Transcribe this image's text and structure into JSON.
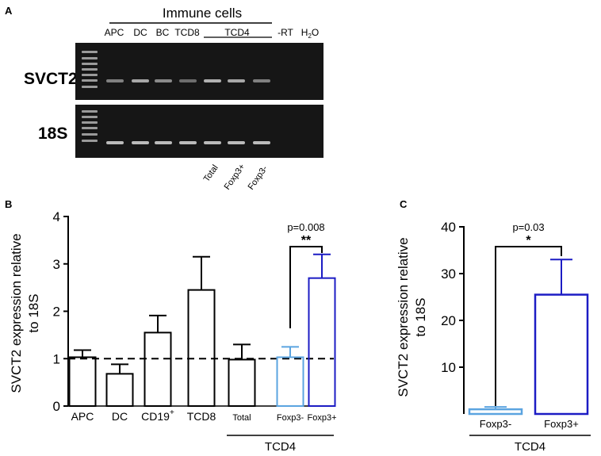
{
  "panel_a": {
    "label": "A",
    "header": "Immune cells",
    "lane_labels": [
      "APC",
      "DC",
      "BC",
      "TCD8",
      "TCD4",
      "-RT"
    ],
    "h2o": {
      "base": "H",
      "sub": "2",
      "tail": "O"
    },
    "gel_rows": [
      "SVCT2",
      "18S"
    ],
    "sub_labels": [
      "Total",
      "Foxp3+",
      "Foxp3-"
    ],
    "colors": {
      "gel": "#161616",
      "band": "#d8d8d8",
      "ladder": "#9a9a9a"
    }
  },
  "chart_data": [
    {
      "type": "bar",
      "panel": "B",
      "categories": [
        "APC",
        "DC",
        "CD19+",
        "TCD8",
        "Total",
        "Foxp3-",
        "Foxp3+"
      ],
      "category_display": [
        {
          "base": "APC",
          "sup": ""
        },
        {
          "base": "DC",
          "sup": ""
        },
        {
          "base": "CD19",
          "sup": "+"
        },
        {
          "base": "TCD8",
          "sup": ""
        },
        {
          "base": "Total",
          "sup": ""
        },
        {
          "base": "Foxp3-",
          "sup": ""
        },
        {
          "base": "Foxp3+",
          "sup": ""
        }
      ],
      "values": [
        1.03,
        0.68,
        1.55,
        2.45,
        0.98,
        1.03,
        2.7
      ],
      "errors": [
        0.15,
        0.2,
        0.36,
        0.7,
        0.32,
        0.22,
        0.5
      ],
      "bar_colors": [
        "#000000",
        "#000000",
        "#000000",
        "#000000",
        "#000000",
        "#5ba4e0",
        "#1c1cc4"
      ],
      "ylabel": "SVCT2 expression relative to 18S",
      "ylabel_lines": [
        "SVCT2 expression relative",
        "to 18S"
      ],
      "ylim": [
        0,
        4
      ],
      "yticks": [
        0,
        1,
        2,
        3,
        4
      ],
      "reference_line": 1,
      "group_label": "TCD4",
      "significance": {
        "from": 5,
        "to": 6,
        "p": "p=0.008",
        "stars": "**"
      }
    },
    {
      "type": "bar",
      "panel": "C",
      "categories": [
        "Foxp3-",
        "Foxp3+"
      ],
      "values": [
        1.0,
        25.5
      ],
      "errors": [
        0.5,
        7.5
      ],
      "bar_colors": [
        "#5ba4e0",
        "#1c1cc4"
      ],
      "ylabel": "SVCT2 expression relative to 18S",
      "ylabel_lines": [
        "SVCT2 expression relative",
        "to 18S"
      ],
      "ylim": [
        0,
        40
      ],
      "yticks": [
        10,
        20,
        30,
        40
      ],
      "group_label": "TCD4",
      "significance": {
        "from": 0,
        "to": 1,
        "p": "p=0.03",
        "stars": "*"
      }
    }
  ]
}
